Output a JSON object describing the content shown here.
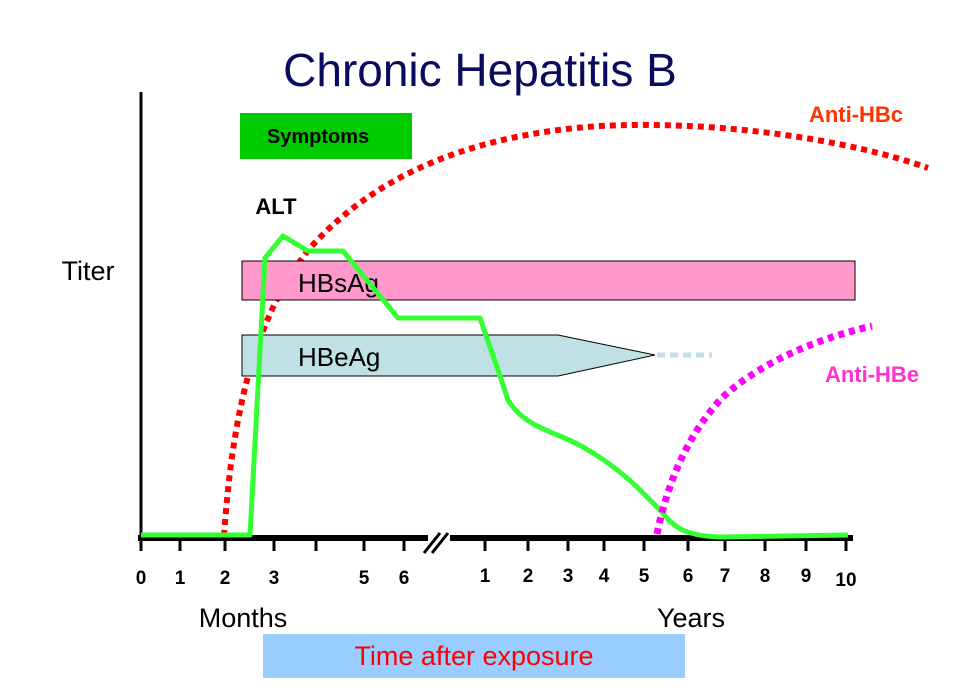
{
  "title": "Chronic Hepatitis B",
  "y_axis_label": "Titer",
  "labels": {
    "symptoms": "Symptoms",
    "alt": "ALT",
    "hbsag": "HBsAg",
    "hbeag": "HBeAg",
    "anti_hbc": "Anti-HBc",
    "anti_hbe": "Anti-HBe"
  },
  "x_axis": {
    "month_ticks": [
      "0",
      "1",
      "2",
      "3",
      "5",
      "6"
    ],
    "year_ticks": [
      "1",
      "2",
      "3",
      "4",
      "5",
      "6",
      "7",
      "8",
      "9",
      "10"
    ],
    "months_label": "Months",
    "years_label": "Years",
    "caption": "Time after exposure"
  },
  "colors": {
    "title": "#0a0a5e",
    "axis": "#000000",
    "symptoms_box": "#00cc00",
    "alt_line": "#33ff33",
    "hbsag_bar": "#ff99cc",
    "hbeag_bar": "#bfe0e4",
    "anti_hbc": "#ff0000",
    "anti_hbc_label": "#ff3300",
    "anti_hbe": "#ff00ff",
    "anti_hbe_label": "#ff33cc",
    "caption_box": "#99ccff",
    "caption_text": "#ff0000"
  }
}
